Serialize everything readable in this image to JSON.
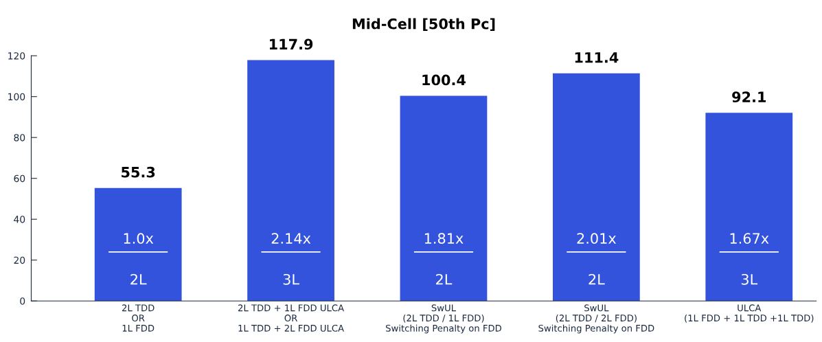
{
  "chart_data": {
    "type": "bar",
    "title": "Mid-Cell [50th Pc]",
    "categories": [
      "2L TDD\nOR\n1L FDD",
      "2L TDD + 1L FDD ULCA\nOR\n1L TDD + 2L FDD ULCA",
      "SwUL\n(2L TDD / 1L FDD)\nSwitching Penalty on FDD",
      "SwUL\n(2L TDD / 2L FDD)\nSwitching Penalty on FDD",
      "ULCA\n(1L FDD + 1L TDD +1L TDD)"
    ],
    "values": [
      55.3,
      117.9,
      100.4,
      111.4,
      92.1
    ],
    "color": "#3353dc",
    "data_labels": true,
    "ylim": [
      0,
      120
    ],
    "yticks": [
      0,
      20,
      40,
      60,
      80,
      100,
      120
    ],
    "grid": false,
    "legend": false,
    "annotations": [
      "1.0x",
      "2L",
      "2.14x",
      "3L",
      "1.81x",
      "2L",
      "2.01x",
      "2L",
      "1.67x",
      "3L"
    ]
  }
}
